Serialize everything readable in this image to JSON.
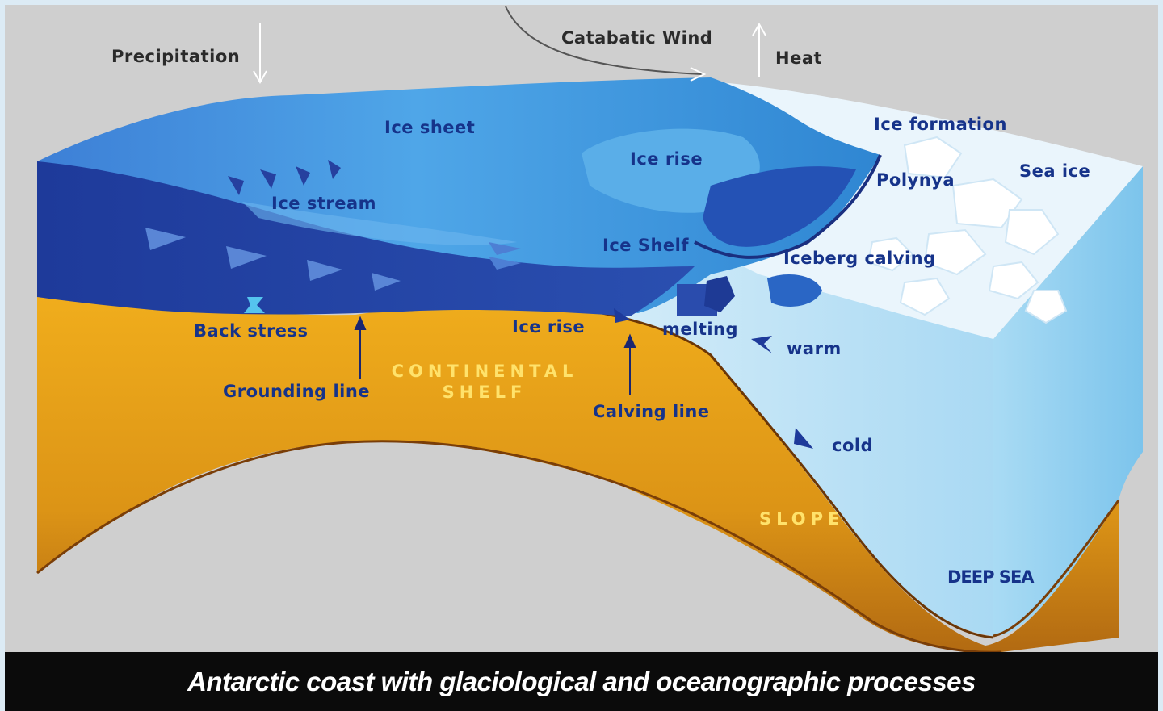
{
  "labels": {
    "precipitation": "Precipitation",
    "catabatic_wind": "Catabatic Wind",
    "heat": "Heat",
    "ice_sheet": "Ice sheet",
    "ice_formation": "Ice formation",
    "ice_rise_top": "Ice rise",
    "sea_ice": "Sea ice",
    "polynya": "Polynya",
    "ice_stream": "Ice stream",
    "ice_shelf": "Ice Shelf",
    "iceberg_calving": "Iceberg calving",
    "back_stress": "Back stress",
    "ice_rise_bottom": "Ice rise",
    "melting": "melting",
    "warm": "warm",
    "grounding_line": "Grounding line",
    "continental_shelf_1": "CONTINENTAL",
    "continental_shelf_2": "SHELF",
    "calving_line": "Calving line",
    "cold": "cold",
    "slope": "SLOPE",
    "deep_sea": "DEEP SEA"
  },
  "caption": "Antarctic coast with glaciological and oceanographic processes",
  "colors": {
    "background": "#cfcfcf",
    "ice_sheet": "#3a86d8",
    "ice_dark": "#1f3d9e",
    "sea_ice": "#e6f3fb",
    "ocean": "#bfe2f6",
    "bedrock": "#e8a21a",
    "bedrock_dark": "#b06a10",
    "caption_bar": "#0b0b0b"
  }
}
